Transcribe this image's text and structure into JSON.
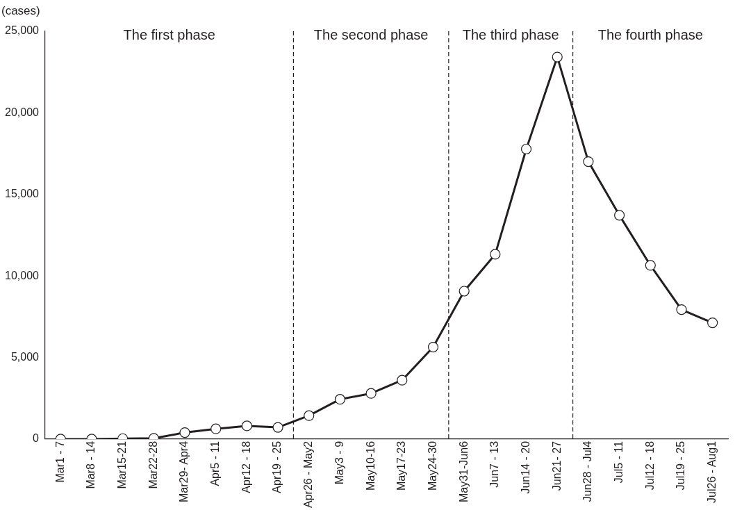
{
  "chart_data": {
    "type": "line",
    "ylabel": "(cases)",
    "categories": [
      "Mar1 - 7",
      "Mar8 - 14",
      "Mar15-21",
      "Mar22-28",
      "Mar29- Apr4",
      "Apr5 - 11",
      "Apr12 - 18",
      "Apr19 - 25",
      "Apr26 - May2",
      "May3 - 9",
      "May10-16",
      "May17-23",
      "May24-30",
      "May31-Jun6",
      "Jun7 - 13",
      "Jun14 - 20",
      "Jun21- 27",
      "Jun28 - Jul4",
      "Jul5 - 11",
      "Jul12 - 18",
      "Jul19 - 25",
      "Jul26 - Aug1"
    ],
    "series": [
      {
        "color": "#231f20",
        "values": [
          0,
          0,
          30,
          50,
          400,
          630,
          810,
          720,
          1440,
          2440,
          2800,
          3610,
          5640,
          9070,
          11330,
          17780,
          23420,
          17010,
          13720,
          10650,
          7940,
          7130
        ]
      }
    ],
    "ylim": [
      0,
      25000
    ],
    "yticks": [
      0,
      {
        "value": 5000,
        "label": "5,000"
      },
      {
        "value": 10000,
        "label": "10,000"
      },
      {
        "value": 15000,
        "label": "15,000"
      },
      {
        "value": 20000,
        "label": "20,000"
      },
      {
        "value": 25000,
        "label": "25,000"
      }
    ],
    "annotations": [
      "The first phase",
      "The second phase",
      "The third phase",
      "The fourth phase"
    ],
    "grid": false,
    "legend": false,
    "marker": "circle",
    "line_style": "solid"
  }
}
